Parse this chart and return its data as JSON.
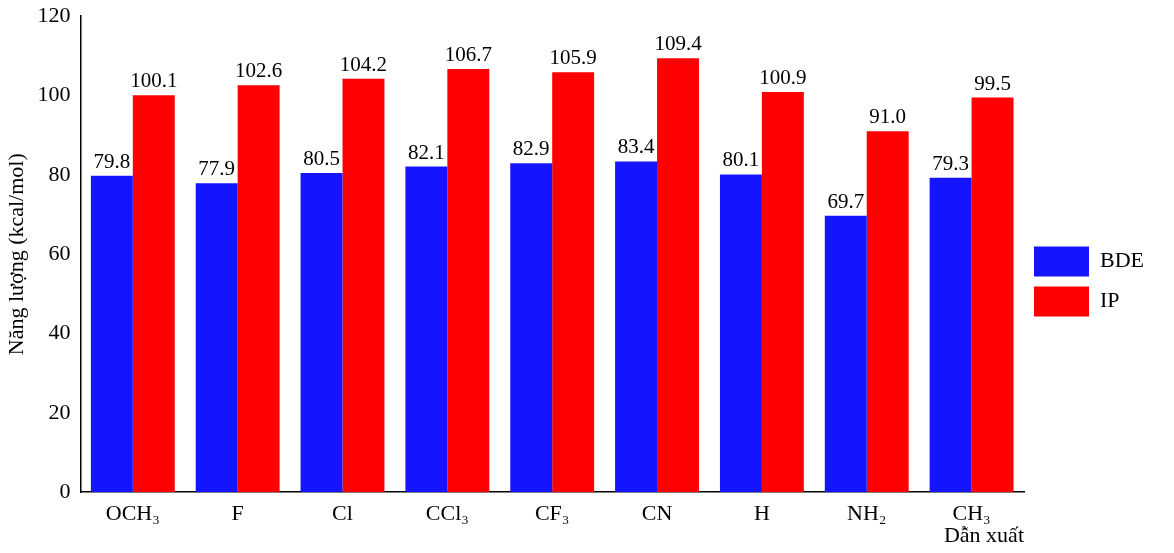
{
  "chart_data": {
    "type": "bar",
    "xlabel": "Dẫn xuất",
    "ylabel": "Năng lượng (kcal/mol)",
    "categories": [
      "OCH₃",
      "F",
      "Cl",
      "CCl₃",
      "CF₃",
      "CN",
      "H",
      "NH₂",
      "CH₃"
    ],
    "series": [
      {
        "name": "BDE",
        "color": "#1414ff",
        "values": [
          79.8,
          77.9,
          80.5,
          82.1,
          82.9,
          83.4,
          80.1,
          69.7,
          79.3
        ]
      },
      {
        "name": "IP",
        "color": "#ff0000",
        "values": [
          100.1,
          102.6,
          104.2,
          106.7,
          105.9,
          109.4,
          100.9,
          91.0,
          99.5
        ]
      }
    ],
    "value_labels": [
      [
        "79.8",
        "77.9",
        "80.5",
        "82.1",
        "82.9",
        "83.4",
        "80.1",
        "69.7",
        "79.3"
      ],
      [
        "100.1",
        "102.6",
        "104.2",
        "106.7",
        "105.9",
        "109.4",
        "100.9",
        "91.0",
        "99.5"
      ]
    ],
    "ylim": [
      0,
      120
    ],
    "yticks": [
      0,
      20,
      40,
      60,
      80,
      100,
      120
    ],
    "grid": false,
    "legend": "right"
  }
}
